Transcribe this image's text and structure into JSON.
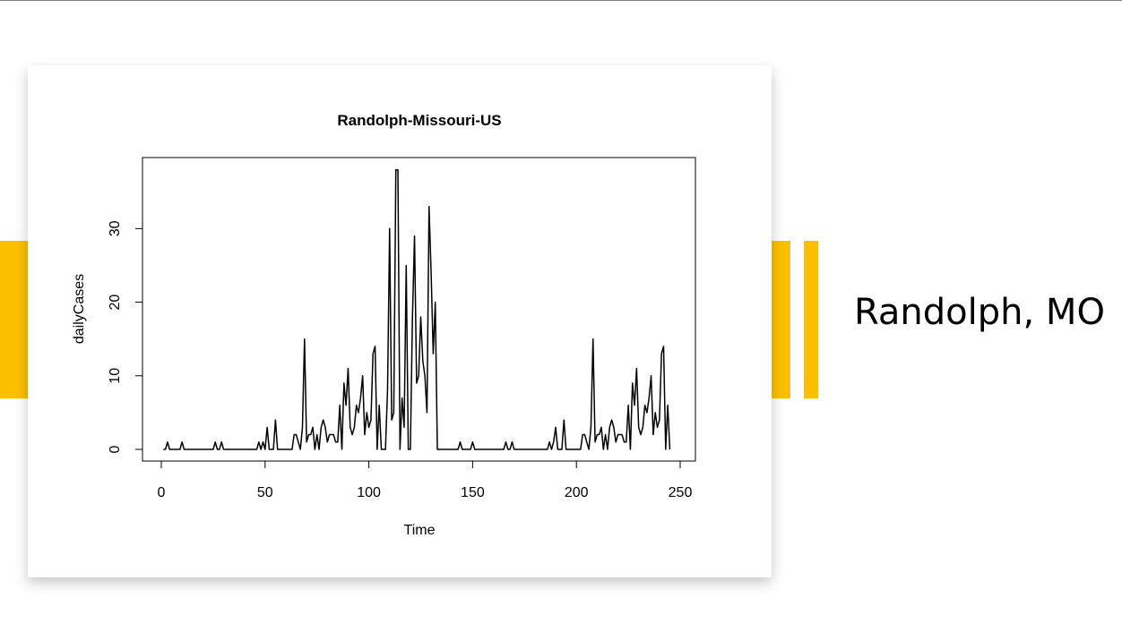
{
  "slide": {
    "side_title": "Randolph, MO",
    "accent_color": "#fcbf00"
  },
  "chart_data": {
    "type": "line",
    "title": "Randolph-Missouri-US",
    "xlabel": "Time",
    "ylabel": "dailyCases",
    "xlim": [
      0,
      250
    ],
    "ylim": [
      0,
      35
    ],
    "x_ticks": [
      0,
      50,
      100,
      150,
      200,
      250
    ],
    "y_ticks": [
      0,
      10,
      20,
      30
    ],
    "grid": false,
    "legend": "none",
    "series": [
      {
        "color": "#000000",
        "x_start": 1,
        "x_step": 1,
        "values": [
          0,
          0,
          1,
          0,
          0,
          0,
          0,
          0,
          0,
          1,
          0,
          0,
          0,
          0,
          0,
          0,
          0,
          0,
          0,
          0,
          0,
          0,
          0,
          0,
          0,
          1,
          0,
          0,
          1,
          0,
          0,
          0,
          0,
          0,
          0,
          0,
          0,
          0,
          0,
          0,
          0,
          0,
          0,
          0,
          0,
          0,
          1,
          0,
          1,
          0,
          3,
          0,
          0,
          0,
          4,
          0,
          0,
          0,
          0,
          0,
          0,
          0,
          0,
          2,
          2,
          1,
          0,
          3,
          15,
          1,
          2,
          2,
          3,
          0,
          2,
          0,
          3,
          4,
          3,
          1,
          2,
          2,
          2,
          1,
          1,
          6,
          0,
          9,
          6,
          11,
          3,
          2,
          3,
          6,
          5,
          7,
          10,
          2,
          5,
          3,
          4,
          13,
          14,
          0,
          6,
          0,
          0,
          0,
          8,
          30,
          4,
          5,
          38,
          38,
          0,
          7,
          3,
          25,
          0,
          0,
          18,
          29,
          9,
          10,
          18,
          12,
          10,
          5,
          33,
          24,
          13,
          20,
          0,
          0,
          0,
          0,
          0,
          0,
          0,
          0,
          0,
          0,
          0,
          1,
          0,
          0,
          0,
          0,
          0,
          1,
          0,
          0,
          0,
          0,
          0,
          0,
          0,
          0,
          0,
          0,
          0,
          0,
          0,
          0,
          0,
          1,
          0,
          0,
          1,
          0,
          0,
          0,
          0,
          0,
          0,
          0,
          0,
          0,
          0,
          0,
          0,
          0,
          0,
          0,
          0,
          0,
          1,
          0,
          1,
          3,
          0,
          0,
          0,
          4,
          0,
          0,
          0,
          0,
          0,
          0,
          0,
          0,
          2,
          2,
          1,
          0,
          3,
          15,
          1,
          2,
          2,
          3,
          0,
          2,
          0,
          3,
          4,
          3,
          1,
          2,
          2,
          2,
          1,
          1,
          6,
          0,
          9,
          6,
          11,
          3,
          2,
          3,
          6,
          5,
          7,
          10,
          2,
          5,
          3,
          4,
          13,
          14,
          0,
          6,
          0
        ]
      }
    ]
  }
}
